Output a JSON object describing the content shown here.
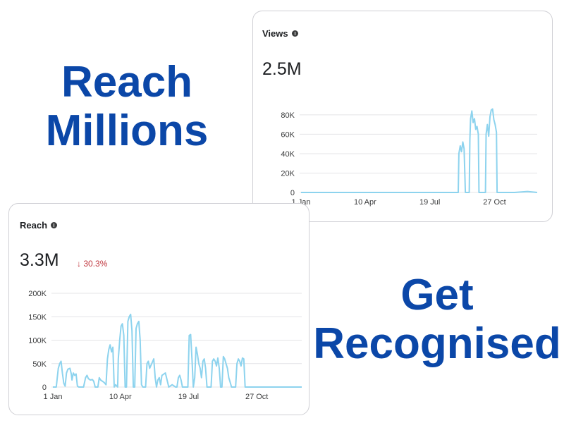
{
  "headlines": {
    "top": [
      "Reach",
      "Millions"
    ],
    "bottom": [
      "Get",
      "Recognised"
    ]
  },
  "colors": {
    "headline": "#0b47a8",
    "line": "#8dd3ee",
    "grid": "#e4e4e7",
    "negative": "#c0363e"
  },
  "views_card": {
    "title": "Views",
    "info_icon": "info-icon",
    "total": "2.5M"
  },
  "reach_card": {
    "title": "Reach",
    "info_icon": "info-icon",
    "total": "3.3M",
    "change": "↓ 30.3%"
  },
  "chart_data": [
    {
      "type": "line",
      "title": "Views",
      "x_tick_labels": [
        "1 Jan",
        "10 Apr",
        "19 Jul",
        "27 Oct"
      ],
      "x_tick_days": [
        0,
        99,
        199,
        299
      ],
      "y_ticks": [
        0,
        20000,
        40000,
        60000,
        80000
      ],
      "y_tick_labels": [
        "0",
        "20K",
        "40K",
        "60K",
        "80K"
      ],
      "ylim": [
        0,
        85000
      ],
      "xlim": [
        0,
        365
      ],
      "grid": true,
      "series": [
        {
          "color": "#8dd3ee",
          "x": [
            0,
            60,
            120,
            180,
            240,
            243,
            244,
            246,
            248,
            250,
            252,
            254,
            255,
            256,
            260,
            261,
            262,
            264,
            266,
            268,
            270,
            272,
            274,
            275,
            276,
            280,
            285,
            286,
            288,
            290,
            292,
            294,
            296,
            298,
            300,
            302,
            303,
            304,
            310,
            330,
            350,
            365
          ],
          "values": [
            0,
            0,
            0,
            0,
            0,
            0,
            40000,
            48000,
            42000,
            52000,
            45000,
            0,
            0,
            0,
            0,
            55000,
            76000,
            84000,
            72000,
            76000,
            65000,
            68000,
            60000,
            0,
            0,
            0,
            0,
            60000,
            70000,
            58000,
            78000,
            85000,
            86000,
            75000,
            70000,
            62000,
            0,
            0,
            0,
            0,
            1000,
            0
          ]
        }
      ]
    },
    {
      "type": "line",
      "title": "Reach",
      "x_tick_labels": [
        "1 Jan",
        "10 Apr",
        "19 Jul",
        "27 Oct"
      ],
      "x_tick_days": [
        0,
        99,
        199,
        299
      ],
      "y_ticks": [
        0,
        50000,
        100000,
        150000,
        200000
      ],
      "y_tick_labels": [
        "0",
        "50K",
        "100K",
        "150K",
        "200K"
      ],
      "ylim": [
        0,
        200000
      ],
      "xlim": [
        0,
        365
      ],
      "grid": true,
      "series": [
        {
          "color": "#8dd3ee",
          "x": [
            0,
            5,
            8,
            10,
            12,
            14,
            16,
            18,
            20,
            22,
            25,
            27,
            28,
            30,
            32,
            34,
            36,
            38,
            40,
            45,
            48,
            50,
            52,
            55,
            58,
            60,
            62,
            64,
            66,
            68,
            70,
            75,
            78,
            80,
            82,
            84,
            86,
            88,
            90,
            92,
            95,
            96,
            98,
            100,
            102,
            104,
            106,
            108,
            110,
            112,
            114,
            116,
            118,
            120,
            122,
            124,
            126,
            128,
            130,
            132,
            134,
            136,
            138,
            140,
            142,
            145,
            148,
            150,
            152,
            154,
            156,
            158,
            160,
            165,
            170,
            175,
            180,
            182,
            184,
            186,
            188,
            190,
            192,
            194,
            196,
            198,
            200,
            202,
            204,
            206,
            208,
            210,
            212,
            214,
            216,
            218,
            220,
            222,
            224,
            226,
            228,
            230,
            232,
            234,
            236,
            238,
            240,
            242,
            244,
            246,
            248,
            250,
            252,
            254,
            256,
            258,
            260,
            262,
            264,
            266,
            268,
            270,
            272,
            274,
            276,
            278,
            280,
            282,
            290,
            300,
            320,
            340,
            365
          ],
          "values": [
            0,
            0,
            40000,
            50000,
            55000,
            30000,
            8000,
            2000,
            30000,
            38000,
            40000,
            28000,
            15000,
            30000,
            25000,
            28000,
            2000,
            0,
            0,
            0,
            20000,
            25000,
            18000,
            15000,
            16000,
            12000,
            0,
            0,
            0,
            20000,
            15000,
            10000,
            5000,
            60000,
            80000,
            90000,
            75000,
            85000,
            0,
            5000,
            0,
            60000,
            100000,
            130000,
            135000,
            110000,
            0,
            0,
            140000,
            150000,
            155000,
            120000,
            0,
            0,
            125000,
            135000,
            140000,
            100000,
            5000,
            0,
            0,
            0,
            50000,
            55000,
            40000,
            50000,
            60000,
            20000,
            0,
            15000,
            20000,
            5000,
            25000,
            30000,
            0,
            5000,
            0,
            0,
            20000,
            25000,
            15000,
            0,
            0,
            0,
            0,
            0,
            110000,
            112000,
            60000,
            0,
            20000,
            85000,
            70000,
            50000,
            40000,
            20000,
            55000,
            60000,
            40000,
            0,
            0,
            0,
            0,
            55000,
            60000,
            55000,
            45000,
            62000,
            40000,
            0,
            0,
            65000,
            60000,
            50000,
            40000,
            20000,
            10000,
            0,
            0,
            0,
            0,
            50000,
            60000,
            55000,
            45000,
            62000,
            60000,
            0,
            0,
            0,
            0,
            0,
            0
          ]
        }
      ]
    }
  ]
}
